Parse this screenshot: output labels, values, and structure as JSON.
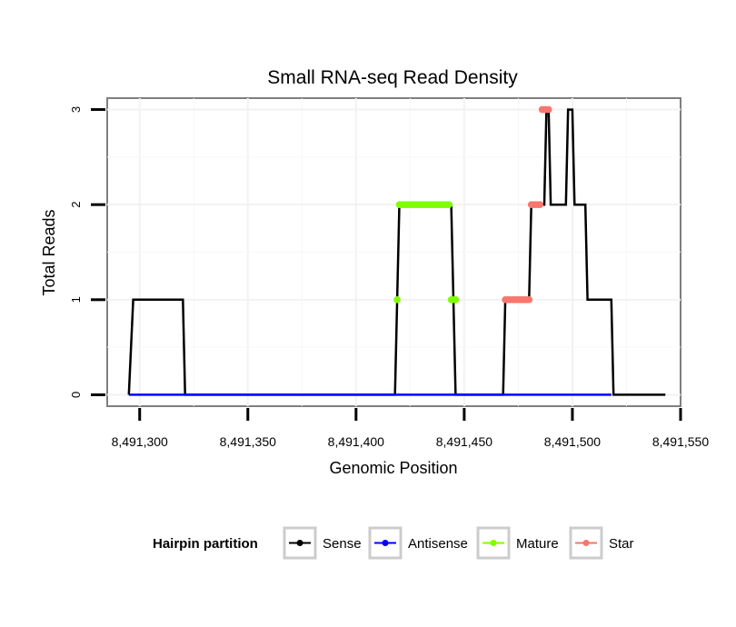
{
  "chart_data": {
    "type": "line",
    "title": "Small RNA-seq Read Density",
    "xlabel": "Genomic Position",
    "ylabel": "Total Reads",
    "xlim": [
      8491285,
      8491550
    ],
    "ylim": [
      -0.12,
      3.12
    ],
    "x_ticks": [
      8491300,
      8491350,
      8491400,
      8491450,
      8491500,
      8491550
    ],
    "x_tick_labels": [
      "8,491,300",
      "8,491,350",
      "8,491,400",
      "8,491,450",
      "8,491,500",
      "8,491,550"
    ],
    "y_ticks": [
      0,
      1,
      2,
      3
    ],
    "y_tick_labels": [
      "0",
      "1",
      "2",
      "3"
    ],
    "grid": true,
    "legend": {
      "title": "Hairpin partition",
      "position": "bottom",
      "entries": [
        {
          "name": "Sense",
          "color": "#000000"
        },
        {
          "name": "Antisense",
          "color": "#0000ff"
        },
        {
          "name": "Mature",
          "color": "#7fff00"
        },
        {
          "name": "Star",
          "color": "#f8766d"
        }
      ]
    },
    "series": [
      {
        "name": "Sense",
        "color": "#000000",
        "points": [
          [
            8491295,
            0
          ],
          [
            8491297,
            1
          ],
          [
            8491320,
            1
          ],
          [
            8491321,
            0
          ],
          [
            8491418,
            0
          ],
          [
            8491420,
            2
          ],
          [
            8491444,
            2
          ],
          [
            8491446,
            0
          ],
          [
            8491468,
            0
          ],
          [
            8491469,
            1
          ],
          [
            8491480,
            1
          ],
          [
            8491481,
            2
          ],
          [
            8491487,
            2
          ],
          [
            8491488,
            3
          ],
          [
            8491489,
            3
          ],
          [
            8491490,
            2
          ],
          [
            8491497,
            2
          ],
          [
            8491498,
            3
          ],
          [
            8491500,
            3
          ],
          [
            8491501,
            2
          ],
          [
            8491506,
            2
          ],
          [
            8491507,
            1
          ],
          [
            8491518,
            1
          ],
          [
            8491519,
            0
          ],
          [
            8491543,
            0
          ]
        ]
      },
      {
        "name": "Antisense",
        "color": "#0000ff",
        "points": [
          [
            8491295,
            0
          ],
          [
            8491320,
            0
          ],
          [
            8491418,
            0
          ],
          [
            8491446,
            0
          ],
          [
            8491468,
            0
          ],
          [
            8491518,
            0
          ]
        ]
      },
      {
        "name": "Mature",
        "color": "#7fff00",
        "points": [
          [
            8491419,
            1
          ],
          [
            8491420,
            2
          ],
          [
            8491421,
            2
          ],
          [
            8491422,
            2
          ],
          [
            8491423,
            2
          ],
          [
            8491424,
            2
          ],
          [
            8491425,
            2
          ],
          [
            8491426,
            2
          ],
          [
            8491427,
            2
          ],
          [
            8491428,
            2
          ],
          [
            8491429,
            2
          ],
          [
            8491430,
            2
          ],
          [
            8491431,
            2
          ],
          [
            8491432,
            2
          ],
          [
            8491433,
            2
          ],
          [
            8491434,
            2
          ],
          [
            8491435,
            2
          ],
          [
            8491436,
            2
          ],
          [
            8491437,
            2
          ],
          [
            8491438,
            2
          ],
          [
            8491439,
            2
          ],
          [
            8491440,
            2
          ],
          [
            8491441,
            2
          ],
          [
            8491442,
            2
          ],
          [
            8491443,
            2
          ],
          [
            8491444,
            1
          ],
          [
            8491445,
            1
          ],
          [
            8491446,
            1
          ]
        ]
      },
      {
        "name": "Star",
        "color": "#f8766d",
        "points": [
          [
            8491469,
            1
          ],
          [
            8491470,
            1
          ],
          [
            8491471,
            1
          ],
          [
            8491472,
            1
          ],
          [
            8491473,
            1
          ],
          [
            8491474,
            1
          ],
          [
            8491475,
            1
          ],
          [
            8491476,
            1
          ],
          [
            8491477,
            1
          ],
          [
            8491478,
            1
          ],
          [
            8491479,
            1
          ],
          [
            8491480,
            1
          ],
          [
            8491481,
            2
          ],
          [
            8491482,
            2
          ],
          [
            8491483,
            2
          ],
          [
            8491484,
            2
          ],
          [
            8491485,
            2
          ],
          [
            8491486,
            3
          ],
          [
            8491487,
            3
          ],
          [
            8491488,
            3
          ],
          [
            8491489,
            3
          ]
        ]
      }
    ]
  }
}
